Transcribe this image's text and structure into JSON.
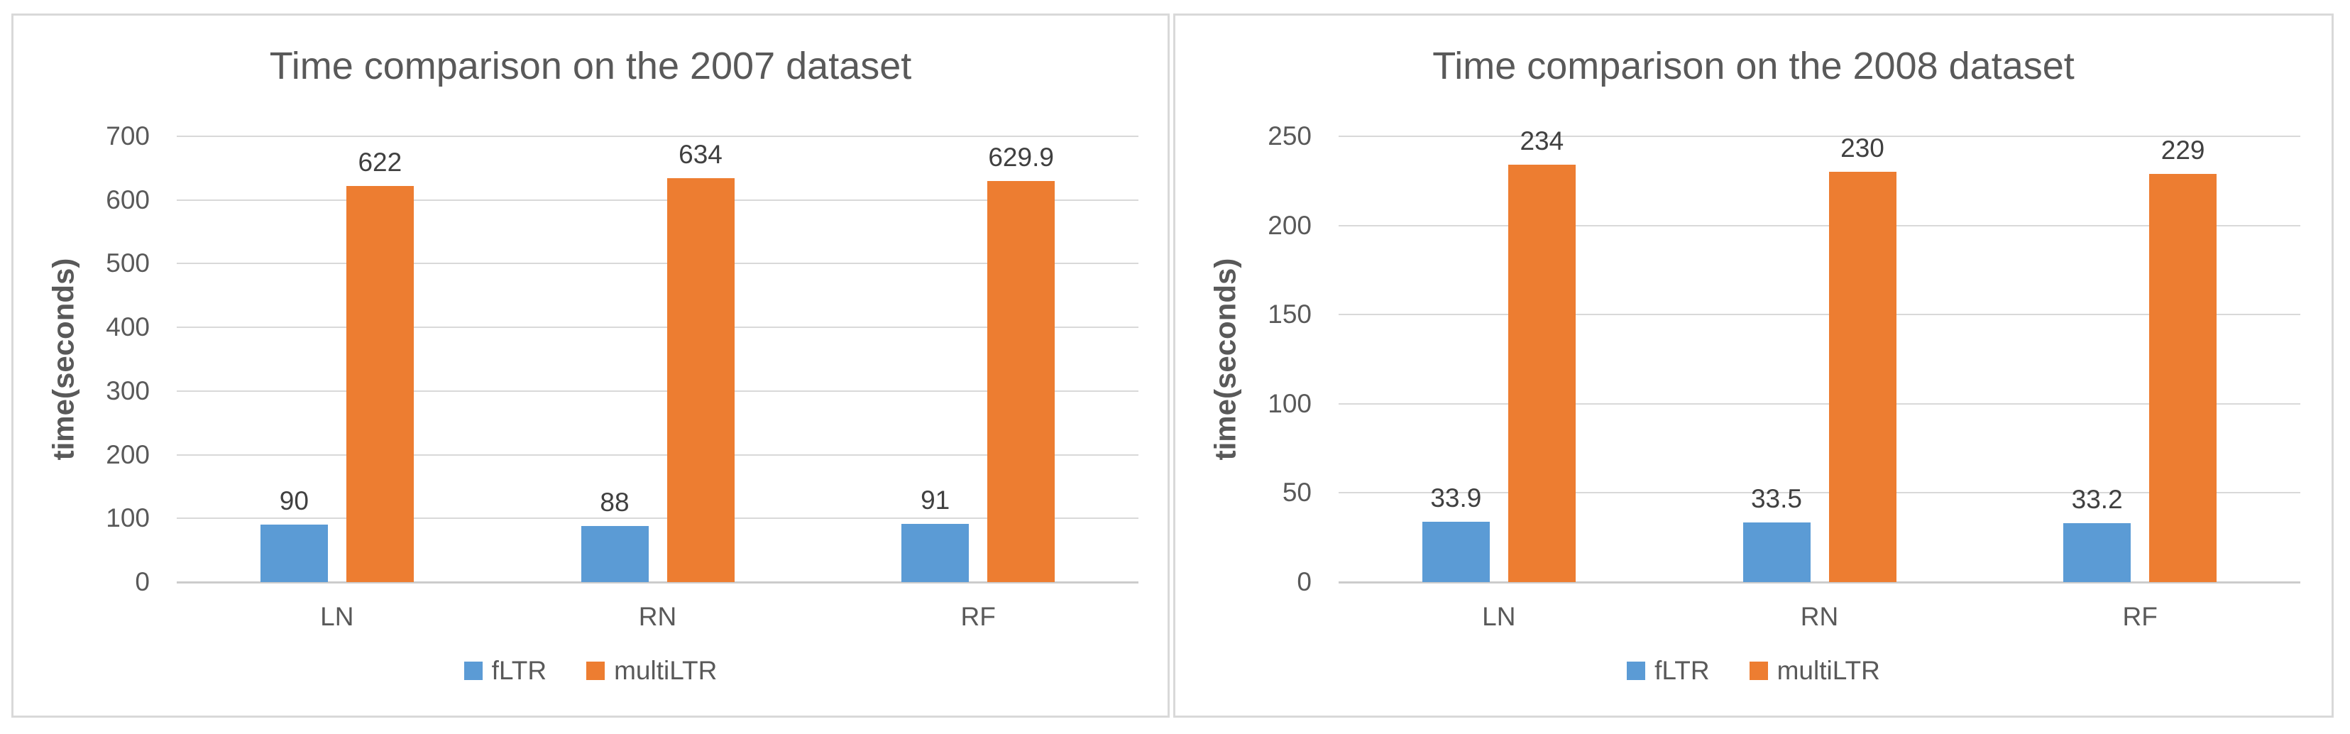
{
  "colors": {
    "fLTR": "#5B9BD5",
    "multiLTR": "#ED7D31",
    "grid": "#D9D9D9",
    "axis_baseline": "#CCCCCC",
    "text": "#595959",
    "data_label": "#404040",
    "panel_border": "#D9D9D9",
    "background": "#FFFFFF"
  },
  "chart_data": [
    {
      "type": "bar",
      "title": "Time comparison on the 2007 dataset",
      "xlabel": "",
      "ylabel": "time(seconds)",
      "categories": [
        "LN",
        "RN",
        "RF"
      ],
      "series": [
        {
          "name": "fLTR",
          "color": "#5B9BD5",
          "values": [
            90,
            88,
            91
          ],
          "labels": [
            "90",
            "88",
            "91"
          ]
        },
        {
          "name": "multiLTR",
          "color": "#ED7D31",
          "values": [
            622,
            634,
            629.9
          ],
          "labels": [
            "622",
            "634",
            "629.9"
          ]
        }
      ],
      "yticks": [
        0,
        100,
        200,
        300,
        400,
        500,
        600,
        700
      ],
      "ylim": [
        0,
        700
      ],
      "grid": true,
      "legend_position": "bottom"
    },
    {
      "type": "bar",
      "title": "Time comparison on the 2008 dataset",
      "xlabel": "",
      "ylabel": "time(seconds)",
      "categories": [
        "LN",
        "RN",
        "RF"
      ],
      "series": [
        {
          "name": "fLTR",
          "color": "#5B9BD5",
          "values": [
            33.9,
            33.5,
            33.2
          ],
          "labels": [
            "33.9",
            "33.5",
            "33.2"
          ]
        },
        {
          "name": "multiLTR",
          "color": "#ED7D31",
          "values": [
            234,
            230,
            229
          ],
          "labels": [
            "234",
            "230",
            "229"
          ]
        }
      ],
      "yticks": [
        0,
        50,
        100,
        150,
        200,
        250
      ],
      "ylim": [
        0,
        250
      ],
      "grid": true,
      "legend_position": "bottom"
    }
  ]
}
